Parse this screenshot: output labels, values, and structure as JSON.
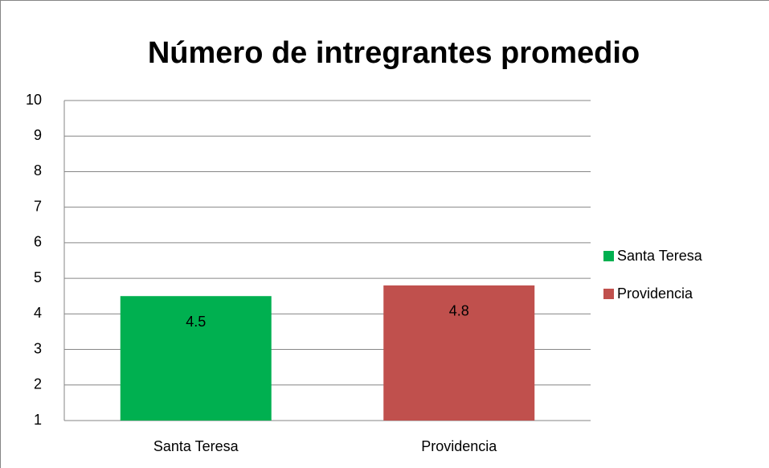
{
  "chart_data": {
    "type": "bar",
    "title": "Número de intregrantes promedio",
    "categories": [
      "Santa Teresa",
      "Providencia"
    ],
    "values": [
      4.5,
      4.8
    ],
    "colors": [
      "#00b050",
      "#c0504d"
    ],
    "ylim": [
      1,
      10
    ],
    "yticks": [
      1,
      2,
      3,
      4,
      5,
      6,
      7,
      8,
      9,
      10
    ],
    "grid": true,
    "legend": "right"
  }
}
